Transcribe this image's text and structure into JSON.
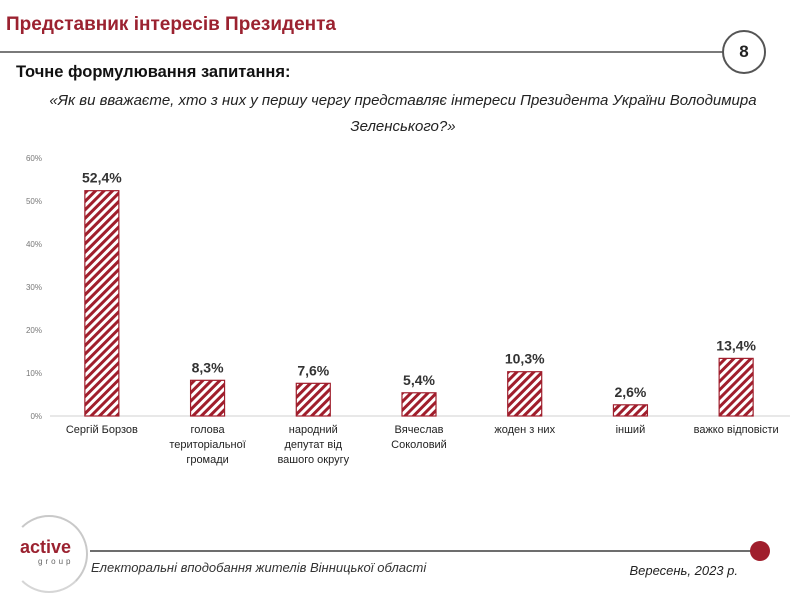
{
  "header": {
    "title": "Представник інтересів Президента",
    "page_number": "8"
  },
  "question": {
    "label": "Точне формулювання запитання:",
    "text": "«Як ви вважаєте, хто з них у першу чергу представляє інтереси Президента України Володимира Зеленського?»"
  },
  "chart_data": {
    "type": "bar",
    "categories": [
      [
        "Сергій Борзов"
      ],
      [
        "голова",
        "територіальної",
        "громади"
      ],
      [
        "народний",
        "депутат від",
        "вашого округу"
      ],
      [
        "Вячеслав",
        "Соколовий"
      ],
      [
        "жоден з них"
      ],
      [
        "інший"
      ],
      [
        "важко відповісти"
      ]
    ],
    "values": [
      52.4,
      8.3,
      7.6,
      5.4,
      10.3,
      2.6,
      13.4
    ],
    "data_labels": [
      "52,4%",
      "8,3%",
      "7,6%",
      "5,4%",
      "10,3%",
      "2,6%",
      "13,4%"
    ],
    "yticks": [
      "0%",
      "10%",
      "20%",
      "30%",
      "40%",
      "50%",
      "60%"
    ],
    "ylim": [
      0,
      60
    ],
    "grid": false,
    "bar_fill": "hatched",
    "bar_color": "#a01e2c"
  },
  "footer": {
    "logo_main": "active",
    "logo_sub": "group",
    "caption": "Електоральні вподобання жителів Вінницької області",
    "date": "Вересень, 2023 р."
  }
}
